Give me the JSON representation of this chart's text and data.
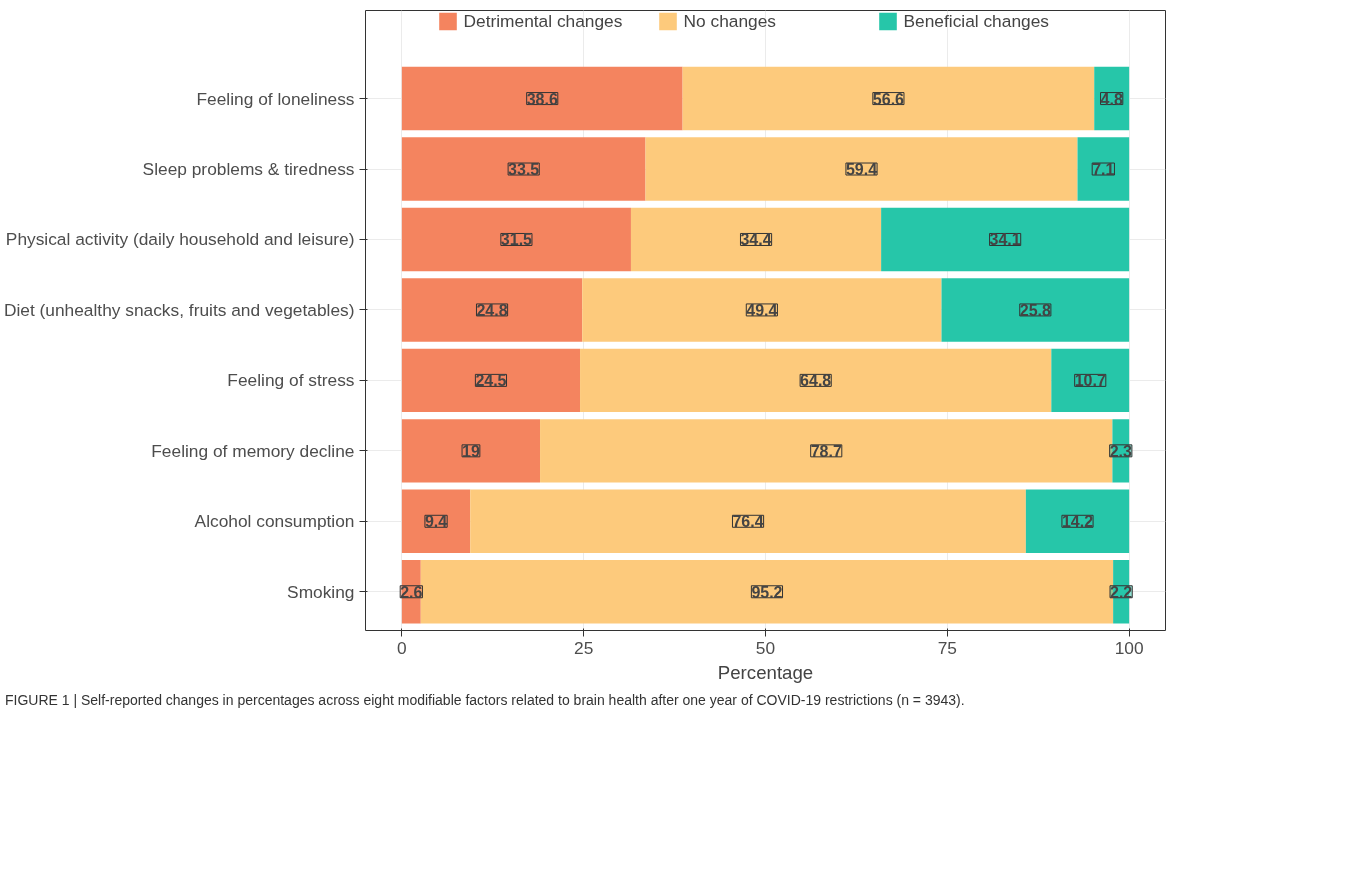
{
  "chart_data": {
    "type": "bar",
    "orientation": "horizontal",
    "stacked": true,
    "categories": [
      "Feeling of loneliness",
      "Sleep problems & tiredness",
      "Physical activity (daily household and leisure)",
      "Diet (unhealthy snacks, fruits and vegetables)",
      "Feeling of stress",
      "Feeling of memory decline",
      "Alcohol consumption",
      "Smoking"
    ],
    "series": [
      {
        "name": "Detrimental changes",
        "color": "#f4845f",
        "values": [
          38.6,
          33.5,
          31.5,
          24.8,
          24.5,
          19,
          9.4,
          2.6
        ]
      },
      {
        "name": "No changes",
        "color": "#fdca7c",
        "values": [
          56.6,
          59.4,
          34.4,
          49.4,
          64.8,
          78.7,
          76.4,
          95.2
        ]
      },
      {
        "name": "Beneficial changes",
        "color": "#26c6a9",
        "values": [
          4.8,
          7.1,
          34.1,
          25.8,
          10.7,
          2.3,
          14.2,
          2.2
        ]
      }
    ],
    "xlim": [
      -5,
      105
    ],
    "xticks": [
      0,
      25,
      50,
      75,
      100
    ],
    "xlabel": "Percentage",
    "grid": true,
    "legend": "top",
    "data_labels": true,
    "annotations": [
      "FIGURE 1 | Self-reported changes in percentages across eight modifiable factors related to brain health after one year of COVID-19 restrictions (n = 3943)."
    ]
  }
}
